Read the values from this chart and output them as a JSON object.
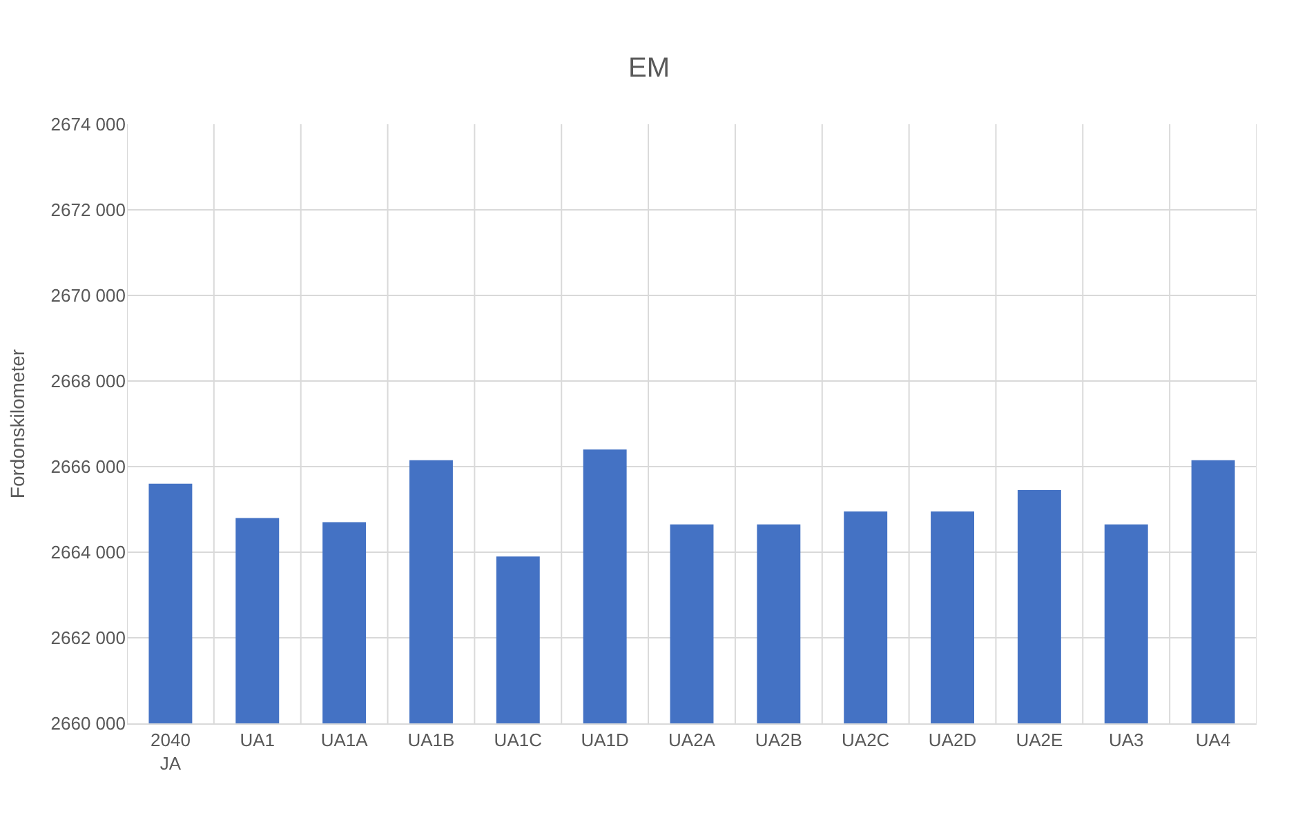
{
  "chart_data": {
    "type": "bar",
    "title": "EM",
    "ylabel": "Fordonskilometer",
    "categories": [
      "2040 JA",
      "UA1",
      "UA1A",
      "UA1B",
      "UA1C",
      "UA1D",
      "UA2A",
      "UA2B",
      "UA2C",
      "UA2D",
      "UA2E",
      "UA3",
      "UA4"
    ],
    "values": [
      2665600,
      2664800,
      2664700,
      2666150,
      2663900,
      2666400,
      2664650,
      2664650,
      2664950,
      2664950,
      2665450,
      2664650,
      2666150
    ],
    "color": "#4472c4",
    "ylim": [
      2660000,
      2674000
    ],
    "yticks": [
      {
        "value": 2660000,
        "label": "2660 000"
      },
      {
        "value": 2662000,
        "label": "2662 000"
      },
      {
        "value": 2664000,
        "label": "2664 000"
      },
      {
        "value": 2666000,
        "label": "2666 000"
      },
      {
        "value": 2668000,
        "label": "2668 000"
      },
      {
        "value": 2670000,
        "label": "2670 000"
      },
      {
        "value": 2672000,
        "label": "2672 000"
      },
      {
        "value": 2674000,
        "label": "2674 000"
      }
    ],
    "grid": true
  }
}
